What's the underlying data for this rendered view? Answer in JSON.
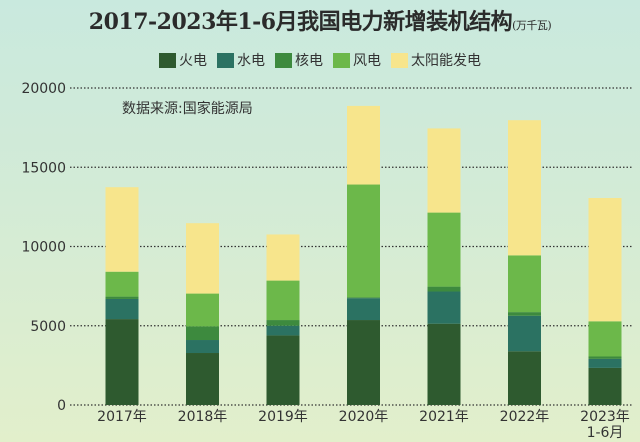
{
  "chart_data": {
    "type": "bar",
    "stacked": true,
    "title": "2017-2023年1-6月我国电力新增装机结构",
    "unit": "(万千瓦)",
    "source": "数据来源:国家能源局",
    "categories": [
      "2017年",
      "2018年",
      "2019年",
      "2020年",
      "2021年",
      "2022年",
      "2023年\n1-6月"
    ],
    "series": [
      {
        "name": "火电",
        "color": "#2e5a2f",
        "values": [
          5420,
          3280,
          4390,
          5360,
          5130,
          3390,
          2340
        ]
      },
      {
        "name": "水电",
        "color": "#2b7262",
        "values": [
          1270,
          820,
          610,
          1380,
          2030,
          2240,
          570
        ]
      },
      {
        "name": "核电",
        "color": "#3d8a3e",
        "values": [
          150,
          860,
          360,
          60,
          310,
          230,
          150
        ]
      },
      {
        "name": "风电",
        "color": "#6cb84a",
        "values": [
          1570,
          2070,
          2490,
          7110,
          4670,
          3580,
          2220
        ]
      },
      {
        "name": "太阳能发电",
        "color": "#f7e58c",
        "values": [
          5330,
          4440,
          2910,
          4960,
          5310,
          8530,
          7780
        ]
      }
    ],
    "ylim": [
      0,
      20000
    ],
    "yticks": [
      "0",
      "5000",
      "10000",
      "15000",
      "20000"
    ],
    "grid": true,
    "legend": "top"
  }
}
